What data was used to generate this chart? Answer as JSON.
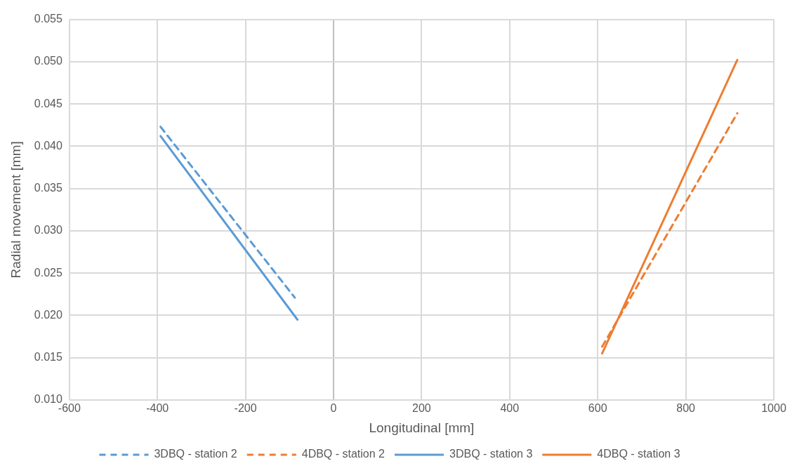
{
  "chart_data": {
    "type": "line",
    "xlabel": "Longitudinal [mm]",
    "ylabel": "Radial movement [mm]",
    "xlim": [
      -600,
      1000
    ],
    "xticks": [
      -600,
      -400,
      -200,
      0,
      200,
      400,
      600,
      800,
      1000
    ],
    "ylim": [
      0.01,
      0.055
    ],
    "yticks": [
      {
        "value": 0.01,
        "label": "0.010"
      },
      {
        "value": 0.015,
        "label": "0.015"
      },
      {
        "value": 0.02,
        "label": "0.020"
      },
      {
        "value": 0.025,
        "label": "0.025"
      },
      {
        "value": 0.03,
        "label": "0.030"
      },
      {
        "value": 0.035,
        "label": "0.035"
      },
      {
        "value": 0.04,
        "label": "0.040"
      },
      {
        "value": 0.045,
        "label": "0.045"
      },
      {
        "value": 0.05,
        "label": "0.050"
      },
      {
        "value": 0.055,
        "label": "0.055"
      }
    ],
    "grid": true,
    "legend": "bottom",
    "marker": "none",
    "series": [
      {
        "name": "3DBQ - station 2",
        "color": "#5b9bd5",
        "line_style": "dashed",
        "x": [
          -393,
          -88
        ],
        "values": [
          0.0423,
          0.0221
        ]
      },
      {
        "name": "4DBQ - station 2",
        "color": "#ed7d31",
        "line_style": "dashed",
        "x": [
          610,
          917
        ],
        "values": [
          0.0163,
          0.0439
        ]
      },
      {
        "name": "3DBQ - station 3",
        "color": "#5b9bd5",
        "line_style": "solid",
        "x": [
          -393,
          -82
        ],
        "values": [
          0.0412,
          0.0195
        ]
      },
      {
        "name": "4DBQ - station 3",
        "color": "#ed7d31",
        "line_style": "solid",
        "x": [
          610,
          917
        ],
        "values": [
          0.0155,
          0.0502
        ]
      }
    ]
  }
}
